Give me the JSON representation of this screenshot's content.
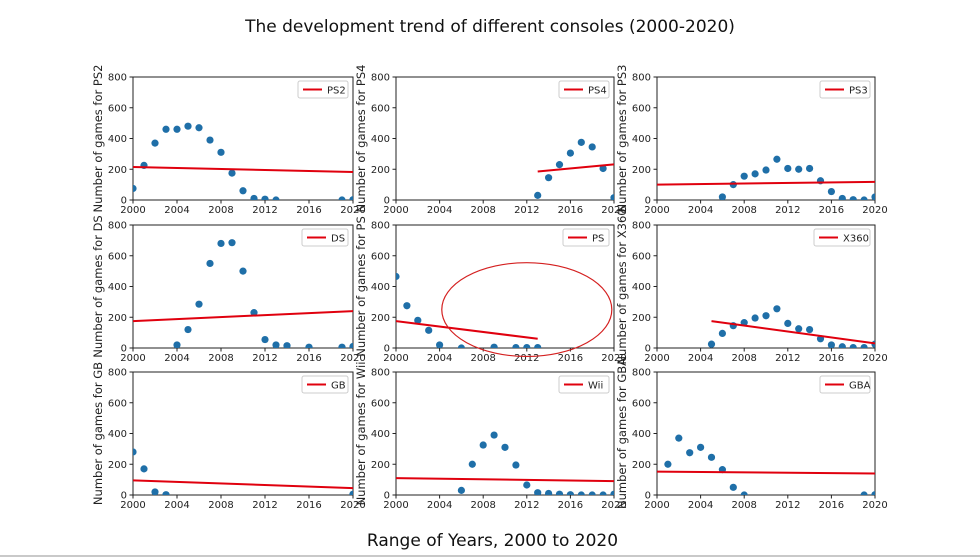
{
  "title": "The development trend of different consoles (2000-2020)",
  "xlabel": "Range of Years, 2000 to 2020",
  "colors": {
    "marker": "#1f6fa8",
    "trend": "#e0000e",
    "annotation": "#d42020",
    "axis": "#222222"
  },
  "chart_data": {
    "type": "scatter",
    "title": "The development trend of different consoles (2000-2020)",
    "xlabel": "Range of Years, 2000 to 2020",
    "xlim": [
      2000,
      2020
    ],
    "ylim": [
      0,
      800
    ],
    "xticks": [
      2000,
      2004,
      2008,
      2012,
      2016,
      2020
    ],
    "yticks": [
      0,
      200,
      400,
      600,
      800
    ],
    "grid": false,
    "legend_placement": "top-right",
    "panels": [
      {
        "name": "PS2",
        "ylabel": "Number of games for PS2",
        "legend": "PS2",
        "points": [
          [
            2000,
            75
          ],
          [
            2001,
            225
          ],
          [
            2002,
            370
          ],
          [
            2003,
            460
          ],
          [
            2004,
            460
          ],
          [
            2005,
            480
          ],
          [
            2006,
            470
          ],
          [
            2007,
            390
          ],
          [
            2008,
            310
          ],
          [
            2009,
            175
          ],
          [
            2010,
            60
          ],
          [
            2011,
            10
          ],
          [
            2012,
            5
          ],
          [
            2013,
            0
          ],
          [
            2019,
            0
          ],
          [
            2020,
            2
          ]
        ],
        "trend": [
          [
            2000,
            215
          ],
          [
            2020,
            182
          ]
        ]
      },
      {
        "name": "PS4",
        "ylabel": "Number of games for PS4",
        "legend": "PS4",
        "points": [
          [
            2013,
            30
          ],
          [
            2014,
            145
          ],
          [
            2015,
            230
          ],
          [
            2016,
            305
          ],
          [
            2017,
            375
          ],
          [
            2018,
            345
          ],
          [
            2019,
            205
          ],
          [
            2020,
            15
          ]
        ],
        "trend": [
          [
            2013,
            185
          ],
          [
            2020,
            232
          ]
        ]
      },
      {
        "name": "PS3",
        "ylabel": "Number of games for PS3",
        "legend": "PS3",
        "points": [
          [
            2006,
            20
          ],
          [
            2007,
            100
          ],
          [
            2008,
            155
          ],
          [
            2009,
            170
          ],
          [
            2010,
            195
          ],
          [
            2011,
            265
          ],
          [
            2012,
            205
          ],
          [
            2013,
            200
          ],
          [
            2014,
            205
          ],
          [
            2015,
            125
          ],
          [
            2016,
            55
          ],
          [
            2017,
            10
          ],
          [
            2018,
            2
          ],
          [
            2019,
            0
          ],
          [
            2020,
            20
          ]
        ],
        "trend": [
          [
            2000,
            100
          ],
          [
            2020,
            118
          ]
        ]
      },
      {
        "name": "DS",
        "ylabel": "Number of games for DS",
        "legend": "DS",
        "points": [
          [
            2004,
            20
          ],
          [
            2005,
            120
          ],
          [
            2006,
            285
          ],
          [
            2007,
            550
          ],
          [
            2008,
            680
          ],
          [
            2009,
            685
          ],
          [
            2010,
            500
          ],
          [
            2011,
            230
          ],
          [
            2012,
            55
          ],
          [
            2013,
            20
          ],
          [
            2014,
            15
          ],
          [
            2016,
            5
          ],
          [
            2019,
            5
          ],
          [
            2020,
            10
          ]
        ],
        "trend": [
          [
            2000,
            175
          ],
          [
            2020,
            240
          ]
        ]
      },
      {
        "name": "PS",
        "ylabel": "Number of games for PS",
        "legend": "PS",
        "points": [
          [
            2000,
            465
          ],
          [
            2001,
            275
          ],
          [
            2002,
            180
          ],
          [
            2003,
            115
          ],
          [
            2004,
            20
          ],
          [
            2006,
            0
          ],
          [
            2009,
            5
          ],
          [
            2011,
            3
          ],
          [
            2012,
            3
          ],
          [
            2013,
            3
          ]
        ],
        "trend": [
          [
            2000,
            175
          ],
          [
            2013,
            60
          ]
        ],
        "annotation": {
          "type": "ellipse",
          "center": [
            2012,
            250
          ],
          "radius_years": 7.8,
          "radius_value": 305
        }
      },
      {
        "name": "X360",
        "ylabel": "Number of games for X360",
        "legend": "X360",
        "points": [
          [
            2005,
            25
          ],
          [
            2006,
            95
          ],
          [
            2007,
            145
          ],
          [
            2008,
            165
          ],
          [
            2009,
            195
          ],
          [
            2010,
            210
          ],
          [
            2011,
            255
          ],
          [
            2012,
            160
          ],
          [
            2013,
            125
          ],
          [
            2014,
            120
          ],
          [
            2015,
            60
          ],
          [
            2016,
            20
          ],
          [
            2017,
            8
          ],
          [
            2018,
            3
          ],
          [
            2019,
            3
          ],
          [
            2020,
            25
          ]
        ],
        "trend": [
          [
            2005,
            175
          ],
          [
            2020,
            30
          ]
        ]
      },
      {
        "name": "GB",
        "ylabel": "Number of games for GB",
        "legend": "GB",
        "points": [
          [
            2000,
            280
          ],
          [
            2001,
            170
          ],
          [
            2002,
            20
          ],
          [
            2003,
            2
          ],
          [
            2020,
            5
          ]
        ],
        "trend": [
          [
            2000,
            95
          ],
          [
            2020,
            45
          ]
        ]
      },
      {
        "name": "Wii",
        "ylabel": "Number of games for Wii",
        "legend": "Wii",
        "points": [
          [
            2006,
            30
          ],
          [
            2007,
            200
          ],
          [
            2008,
            325
          ],
          [
            2009,
            390
          ],
          [
            2010,
            310
          ],
          [
            2011,
            195
          ],
          [
            2012,
            65
          ],
          [
            2013,
            15
          ],
          [
            2014,
            10
          ],
          [
            2015,
            5
          ],
          [
            2016,
            2
          ],
          [
            2017,
            0
          ],
          [
            2018,
            0
          ],
          [
            2019,
            0
          ],
          [
            2020,
            5
          ]
        ],
        "trend": [
          [
            2000,
            110
          ],
          [
            2020,
            90
          ]
        ]
      },
      {
        "name": "GBA",
        "ylabel": "Number of games for GBA",
        "legend": "GBA",
        "points": [
          [
            2001,
            200
          ],
          [
            2002,
            370
          ],
          [
            2003,
            275
          ],
          [
            2004,
            310
          ],
          [
            2005,
            245
          ],
          [
            2006,
            165
          ],
          [
            2007,
            50
          ],
          [
            2008,
            0
          ],
          [
            2019,
            0
          ],
          [
            2020,
            2
          ]
        ],
        "trend": [
          [
            2000,
            152
          ],
          [
            2020,
            140
          ]
        ]
      }
    ]
  }
}
